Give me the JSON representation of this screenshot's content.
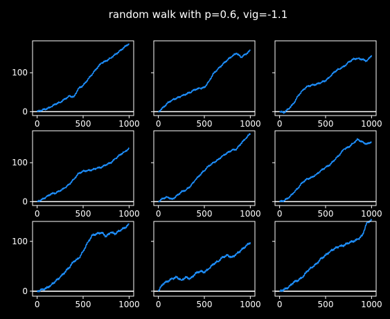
{
  "figure": {
    "title": "random walk with p=0.6, vig=-1.1",
    "background_color": "#000000",
    "foreground_color": "#ffffff",
    "line_color": "#1e90ff",
    "baseline_color": "#ffffff"
  },
  "chart_data": [
    {
      "type": "line",
      "xlim": [
        -50,
        1050
      ],
      "ylim": [
        -10,
        182
      ],
      "xticks": [
        0,
        500,
        1000
      ],
      "yticks": [
        0,
        100
      ],
      "x": [
        0,
        50,
        100,
        150,
        200,
        250,
        300,
        350,
        400,
        450,
        500,
        550,
        600,
        650,
        700,
        750,
        800,
        850,
        900,
        950,
        1000
      ],
      "y": [
        0,
        4,
        7,
        12,
        20,
        24,
        32,
        40,
        38,
        60,
        67,
        82,
        97,
        112,
        125,
        130,
        138,
        147,
        156,
        166,
        175
      ]
    },
    {
      "type": "line",
      "xlim": [
        -50,
        1050
      ],
      "ylim": [
        -10,
        182
      ],
      "xticks": [
        0,
        500,
        1000
      ],
      "yticks": [
        0,
        100
      ],
      "x": [
        0,
        50,
        100,
        150,
        200,
        250,
        300,
        350,
        400,
        450,
        500,
        550,
        600,
        650,
        700,
        750,
        800,
        850,
        900,
        950,
        1000
      ],
      "y": [
        0,
        10,
        22,
        30,
        35,
        40,
        45,
        50,
        57,
        60,
        62,
        78,
        98,
        110,
        122,
        133,
        142,
        150,
        140,
        148,
        157
      ]
    },
    {
      "type": "line",
      "xlim": [
        -50,
        1050
      ],
      "ylim": [
        -10,
        182
      ],
      "xticks": [
        0,
        500,
        1000
      ],
      "yticks": [
        0,
        100
      ],
      "x": [
        0,
        50,
        100,
        150,
        200,
        250,
        300,
        350,
        400,
        450,
        500,
        550,
        600,
        650,
        700,
        750,
        800,
        850,
        900,
        950,
        1000
      ],
      "y": [
        0,
        -2,
        8,
        20,
        40,
        55,
        65,
        68,
        70,
        75,
        80,
        90,
        103,
        110,
        116,
        127,
        135,
        137,
        134,
        130,
        145
      ]
    },
    {
      "type": "line",
      "xlim": [
        -50,
        1050
      ],
      "ylim": [
        -10,
        182
      ],
      "xticks": [
        0,
        500,
        1000
      ],
      "yticks": [
        0,
        100
      ],
      "x": [
        0,
        50,
        100,
        150,
        200,
        250,
        300,
        350,
        400,
        450,
        500,
        550,
        600,
        650,
        700,
        750,
        800,
        850,
        900,
        950,
        1000
      ],
      "y": [
        0,
        5,
        12,
        20,
        22,
        28,
        35,
        45,
        58,
        72,
        78,
        80,
        82,
        86,
        88,
        95,
        100,
        110,
        120,
        128,
        136
      ]
    },
    {
      "type": "line",
      "xlim": [
        -50,
        1050
      ],
      "ylim": [
        -10,
        182
      ],
      "xticks": [
        0,
        500,
        1000
      ],
      "yticks": [
        0,
        100
      ],
      "x": [
        0,
        50,
        100,
        150,
        200,
        250,
        300,
        350,
        400,
        450,
        500,
        550,
        600,
        650,
        700,
        750,
        800,
        850,
        900,
        950,
        1000
      ],
      "y": [
        0,
        8,
        12,
        6,
        15,
        25,
        30,
        40,
        55,
        68,
        80,
        92,
        100,
        108,
        118,
        125,
        132,
        135,
        150,
        162,
        175
      ]
    },
    {
      "type": "line",
      "xlim": [
        -50,
        1050
      ],
      "ylim": [
        -10,
        182
      ],
      "xticks": [
        0,
        500,
        1000
      ],
      "yticks": [
        0,
        100
      ],
      "x": [
        0,
        50,
        100,
        150,
        200,
        250,
        300,
        350,
        400,
        450,
        500,
        550,
        600,
        650,
        700,
        750,
        800,
        850,
        900,
        950,
        1000
      ],
      "y": [
        0,
        3,
        10,
        22,
        35,
        50,
        58,
        62,
        70,
        80,
        88,
        95,
        108,
        120,
        135,
        140,
        150,
        160,
        153,
        148,
        154
      ]
    },
    {
      "type": "line",
      "xlim": [
        -50,
        1050
      ],
      "ylim": [
        -10,
        140
      ],
      "xticks": [
        0,
        500,
        1000
      ],
      "yticks": [
        0,
        100
      ],
      "x": [
        0,
        50,
        100,
        150,
        200,
        250,
        300,
        350,
        400,
        450,
        500,
        550,
        600,
        650,
        700,
        750,
        800,
        850,
        900,
        950,
        1000
      ],
      "y": [
        0,
        3,
        6,
        12,
        20,
        28,
        38,
        48,
        60,
        65,
        80,
        98,
        112,
        115,
        118,
        110,
        118,
        115,
        122,
        127,
        134
      ]
    },
    {
      "type": "line",
      "xlim": [
        -50,
        1050
      ],
      "ylim": [
        -10,
        140
      ],
      "xticks": [
        0,
        500,
        1000
      ],
      "yticks": [
        0,
        100
      ],
      "x": [
        0,
        50,
        100,
        150,
        200,
        250,
        300,
        350,
        400,
        450,
        500,
        550,
        600,
        650,
        700,
        750,
        800,
        850,
        900,
        950,
        1000
      ],
      "y": [
        0,
        15,
        20,
        25,
        28,
        22,
        28,
        25,
        35,
        40,
        38,
        45,
        55,
        60,
        68,
        72,
        68,
        75,
        82,
        90,
        98
      ]
    },
    {
      "type": "line",
      "xlim": [
        -50,
        1050
      ],
      "ylim": [
        -10,
        140
      ],
      "xticks": [
        0,
        500,
        1000
      ],
      "yticks": [
        0,
        100
      ],
      "x": [
        0,
        50,
        100,
        150,
        200,
        250,
        300,
        350,
        400,
        450,
        500,
        550,
        600,
        650,
        700,
        750,
        800,
        850,
        900,
        950,
        1000
      ],
      "y": [
        0,
        3,
        8,
        18,
        22,
        28,
        40,
        48,
        55,
        65,
        72,
        80,
        86,
        90,
        92,
        97,
        100,
        104,
        112,
        138,
        142
      ]
    }
  ]
}
